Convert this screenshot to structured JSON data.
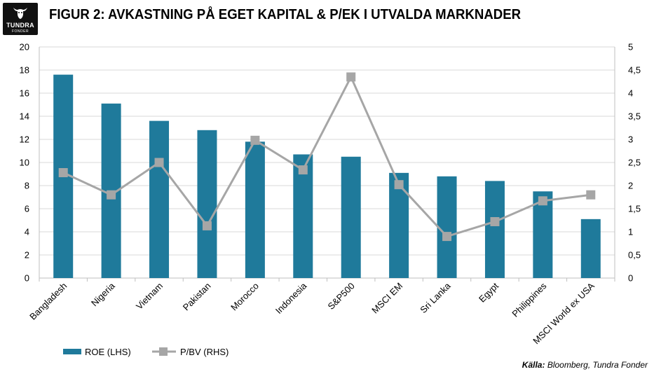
{
  "logo": {
    "name": "TUNDRA",
    "sub": "FONDER"
  },
  "title": "FIGUR 2: AVKASTNING PÅ EGET KAPITAL & P/EK I UTVALDA MARKNADER",
  "source": {
    "label": "Källa:",
    "text": "Bloomberg, Tundra Fonder"
  },
  "colors": {
    "bar": "#1f7a9b",
    "line": "#a6a6a6",
    "grid": "#d9d9d9"
  },
  "chart_data": {
    "type": "bar",
    "categories": [
      "Bangladesh",
      "Nigeria",
      "Vietnam",
      "Pakistan",
      "Morocco",
      "Indonesia",
      "S&P500",
      "MSCI EM",
      "Sri Lanka",
      "Egypt",
      "Philippines",
      "MSCI World ex USA"
    ],
    "series": [
      {
        "name": "ROE (LHS)",
        "type": "bar",
        "axis": "left",
        "values": [
          17.6,
          15.1,
          13.6,
          12.8,
          11.8,
          10.7,
          10.5,
          9.1,
          8.8,
          8.4,
          7.5,
          5.1
        ]
      },
      {
        "name": "P/BV (RHS)",
        "type": "line",
        "axis": "right",
        "values": [
          2.28,
          1.8,
          2.5,
          1.13,
          2.98,
          2.34,
          4.35,
          2.02,
          0.9,
          1.22,
          1.67,
          1.8
        ]
      }
    ],
    "y_left": {
      "min": 0,
      "max": 20,
      "ticks": [
        "0",
        "2",
        "4",
        "6",
        "8",
        "10",
        "12",
        "14",
        "16",
        "18",
        "20"
      ]
    },
    "y_right": {
      "min": 0,
      "max": 5,
      "ticks": [
        "0",
        "0,5",
        "1",
        "1,5",
        "2",
        "2,5",
        "3",
        "3,5",
        "4",
        "4,5",
        "5"
      ]
    },
    "grid": true,
    "legend": "bottom-left"
  }
}
